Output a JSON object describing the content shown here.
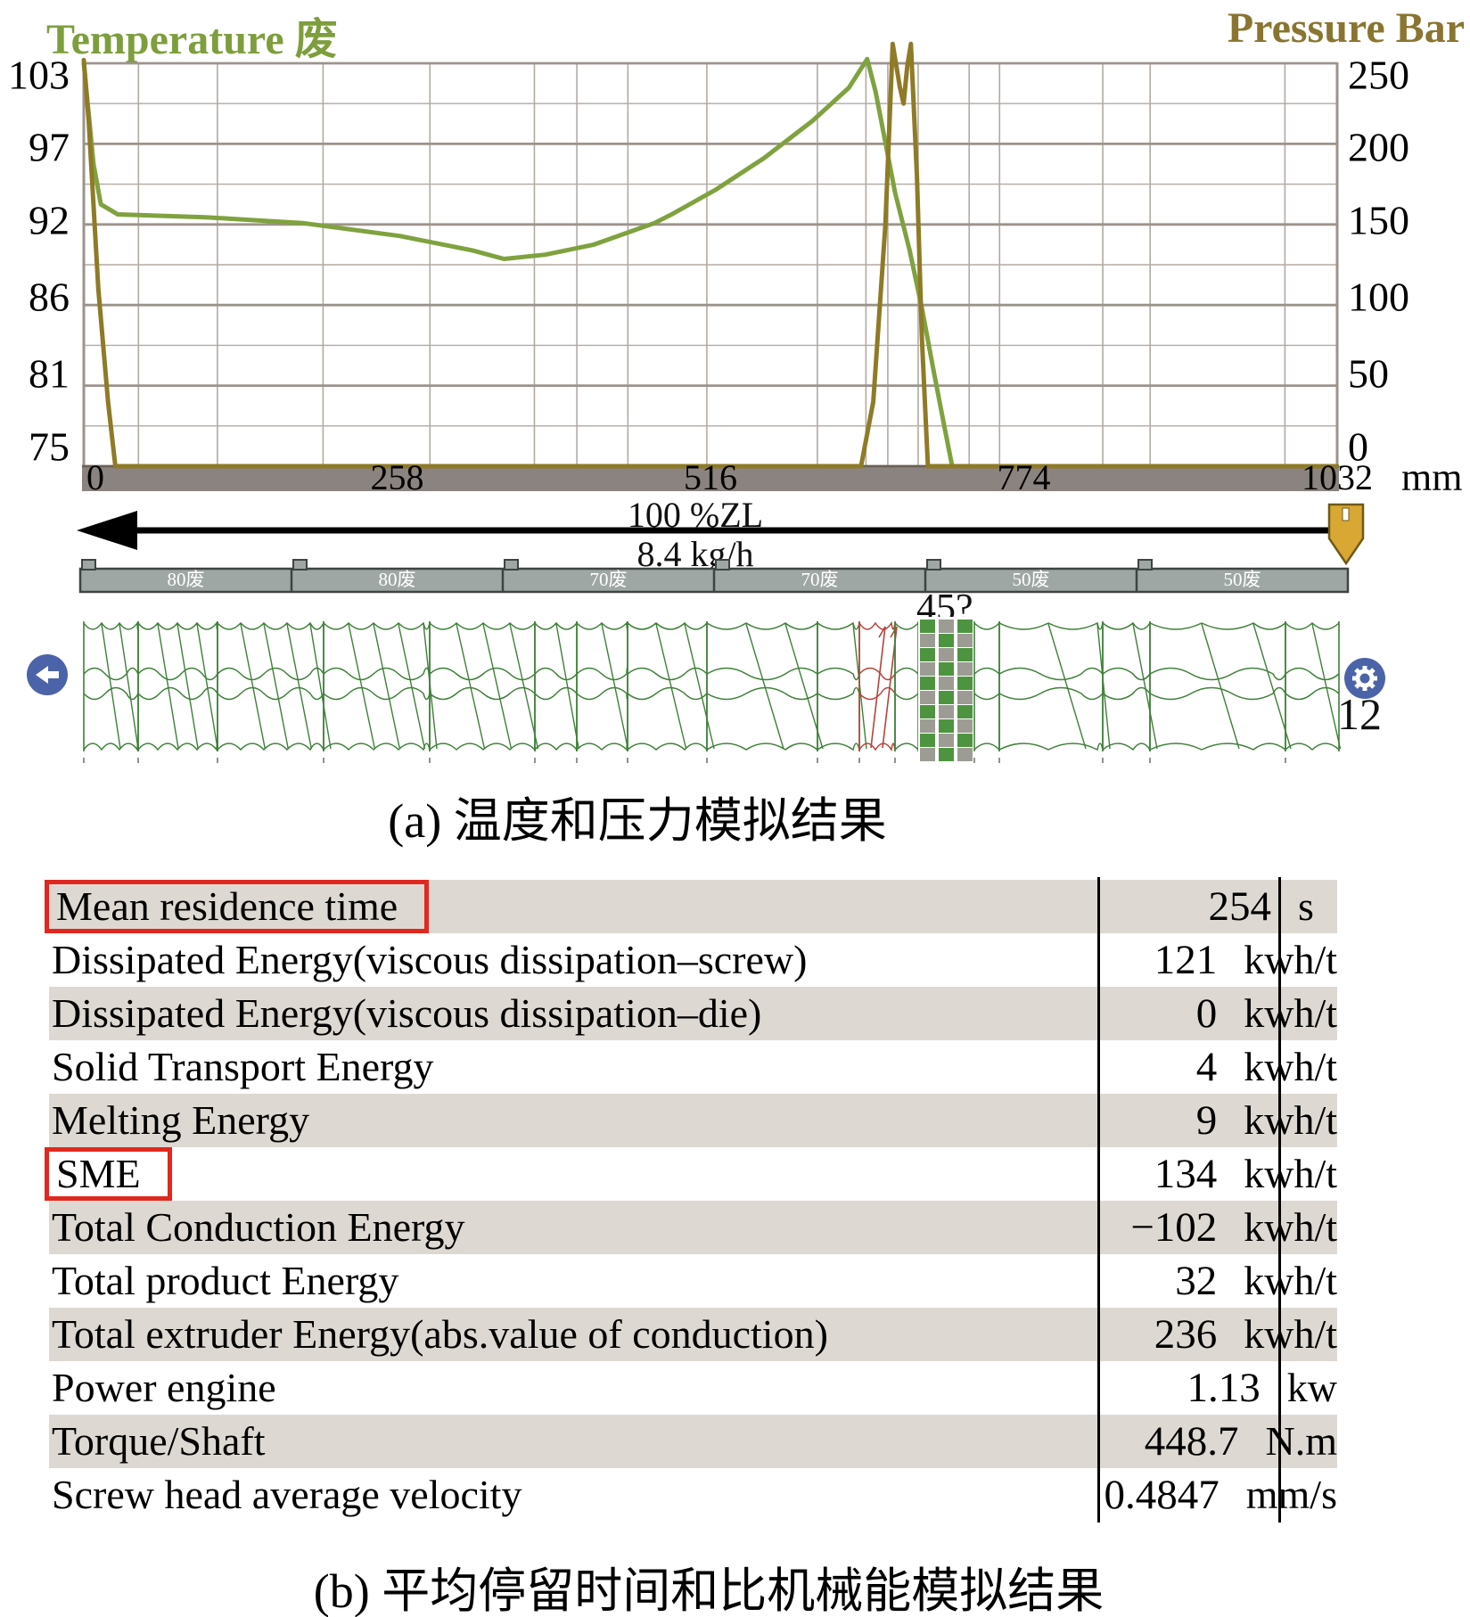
{
  "header": {
    "title_left": "Temperature 废",
    "title_right": "Pressure Bar"
  },
  "chart_data": {
    "type": "line",
    "x_unit": "mm",
    "x_range": [
      0,
      1032
    ],
    "x_ticks": [
      0,
      258,
      516,
      774,
      1032
    ],
    "left_axis": {
      "label": "Temperature 废",
      "range": [
        75,
        103
      ],
      "ticks": [
        103,
        97,
        92,
        86,
        81,
        75
      ]
    },
    "right_axis": {
      "label": "Pressure Bar",
      "range": [
        0,
        250
      ],
      "ticks": [
        250,
        200,
        150,
        100,
        50,
        0
      ]
    },
    "grid": true,
    "vgrid_x_mm": [
      45,
      110,
      197,
      285,
      371,
      406,
      448,
      513,
      604,
      644,
      662,
      687,
      729,
      754,
      839,
      878,
      989
    ],
    "series": [
      {
        "name": "Temperature",
        "unit": "废",
        "color": "#7FA23F",
        "axis": "left",
        "points": [
          [
            0,
            103
          ],
          [
            8,
            96
          ],
          [
            14,
            93.2
          ],
          [
            28,
            92.5
          ],
          [
            100,
            92.3
          ],
          [
            180,
            91.9
          ],
          [
            260,
            91
          ],
          [
            320,
            90
          ],
          [
            346,
            89.4
          ],
          [
            380,
            89.7
          ],
          [
            420,
            90.4
          ],
          [
            470,
            91.9
          ],
          [
            484,
            92.5
          ],
          [
            520,
            94.2
          ],
          [
            560,
            96.4
          ],
          [
            600,
            99
          ],
          [
            630,
            101.3
          ],
          [
            645,
            103.3
          ],
          [
            652,
            101
          ],
          [
            660,
            97.5
          ],
          [
            668,
            94
          ],
          [
            680,
            90
          ],
          [
            690,
            86
          ],
          [
            700,
            81.5
          ],
          [
            708,
            78
          ],
          [
            715,
            75
          ]
        ]
      },
      {
        "name": "Pressure",
        "unit": "Bar",
        "color": "#8F7A26",
        "axis": "right",
        "points": [
          [
            0,
            252
          ],
          [
            4,
            215
          ],
          [
            12,
            110
          ],
          [
            20,
            40
          ],
          [
            26,
            0
          ],
          [
            640,
            0
          ],
          [
            650,
            40
          ],
          [
            660,
            150
          ],
          [
            666,
            262
          ],
          [
            672,
            235
          ],
          [
            675,
            225
          ],
          [
            678,
            248
          ],
          [
            681,
            262
          ],
          [
            686,
            180
          ],
          [
            690,
            80
          ],
          [
            695,
            0
          ],
          [
            1032,
            0
          ]
        ]
      }
    ]
  },
  "flow": {
    "top_label": "100 %ZL",
    "bottom_label": "8.4 kg/h"
  },
  "barrel": {
    "zones": [
      "80废",
      "80废",
      "70废",
      "70废",
      "50废",
      "50废"
    ]
  },
  "screw": {
    "annotation": "45?",
    "count_label": "12"
  },
  "caption_a": "(a) 温度和压力模拟结果",
  "table": {
    "rows": [
      {
        "label": "Mean residence time",
        "value": "254",
        "unit": "s",
        "boxed": true
      },
      {
        "label": "Dissipated Energy(viscous dissipation–screw)",
        "value": "121",
        "unit": "kwh/t",
        "boxed": false
      },
      {
        "label": "Dissipated Energy(viscous dissipation–die)",
        "value": "0",
        "unit": "kwh/t",
        "boxed": false
      },
      {
        "label": "Solid Transport Energy",
        "value": "4",
        "unit": "kwh/t",
        "boxed": false
      },
      {
        "label": "Melting Energy",
        "value": "9",
        "unit": "kwh/t",
        "boxed": false
      },
      {
        "label": "SME",
        "value": "134",
        "unit": "kwh/t",
        "boxed": true
      },
      {
        "label": "Total Conduction Energy",
        "value": "−102",
        "unit": "kwh/t",
        "boxed": false
      },
      {
        "label": "Total product Energy",
        "value": "32",
        "unit": "kwh/t",
        "boxed": false
      },
      {
        "label": "Total extruder Energy(abs.value of conduction)",
        "value": "236",
        "unit": "kwh/t",
        "boxed": false
      },
      {
        "label": "Power engine",
        "value": "1.13",
        "unit": "kw",
        "boxed": false
      },
      {
        "label": "Torque/Shaft",
        "value": "448.7",
        "unit": "N.m",
        "boxed": false
      },
      {
        "label": "Screw head average velocity",
        "value": "0.4847",
        "unit": "mm/s",
        "boxed": false
      }
    ]
  },
  "caption_b": "(b) 平均停留时间和比机械能模拟结果",
  "colors": {
    "temperature_green": "#7FA23F",
    "pressure_gold": "#8F7A26",
    "title_green": "#7E9E3D",
    "title_gold": "#8A7430",
    "grid_major": "#9C938B",
    "grid_minor": "#B3AAA2",
    "axis_band_grey": "#8B837F",
    "barrel_grey": "#9EA7A3",
    "screw_green": "#3E8038",
    "reverse_element_red": "#B5443A",
    "checker_green": "#4E9440",
    "checker_grey": "#9C9C94",
    "nav_blue": "#4B63A8",
    "hopper_gold": "#D9A733",
    "table_shade": "#DDD9D2",
    "highlight_red": "#E0281E"
  }
}
